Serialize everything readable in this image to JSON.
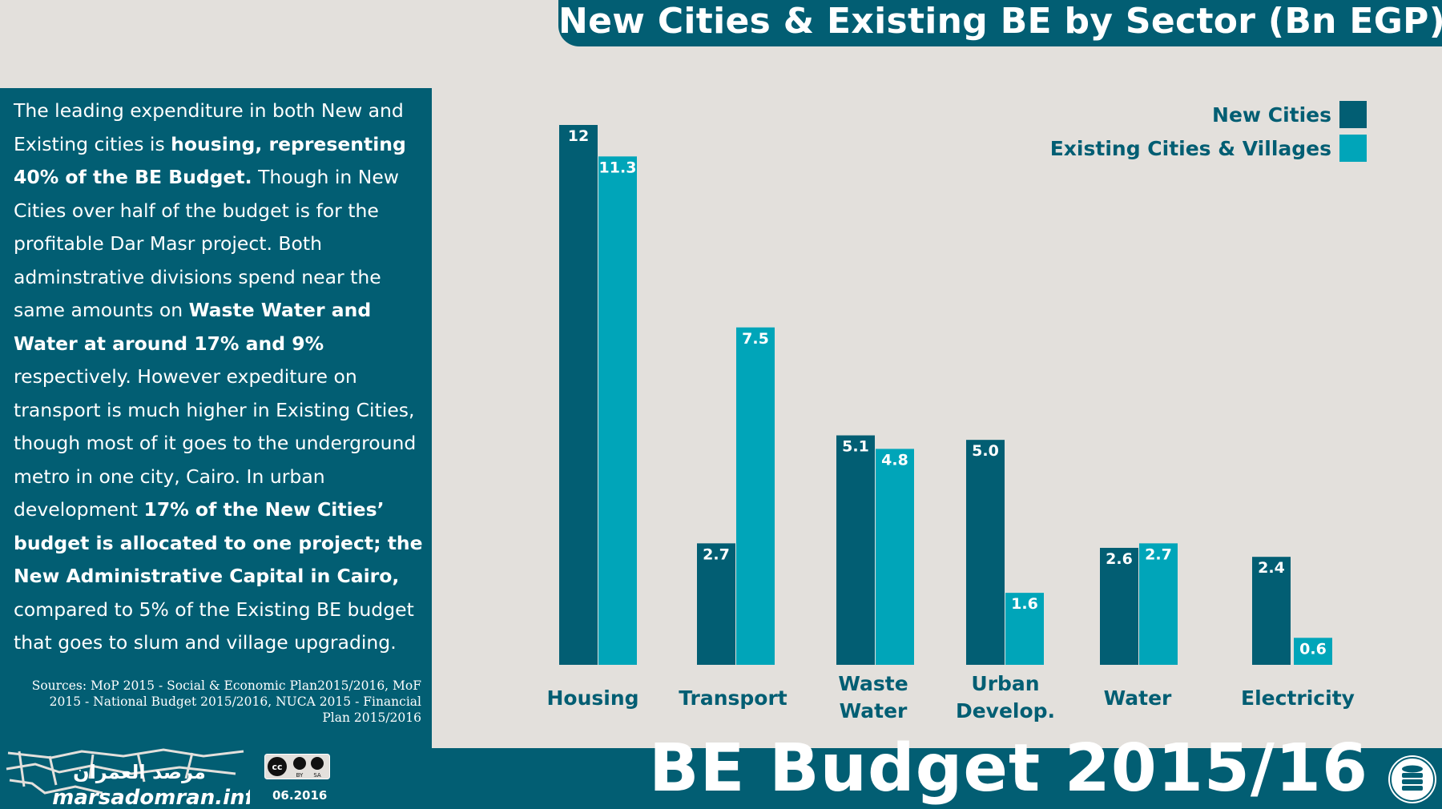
{
  "header": {
    "title": "New Cities & Existing BE by Sector (Bn EGP)"
  },
  "panel": {
    "paragraph": [
      {
        "t": "The leading expenditure in both New and Existing cities is ",
        "b": false
      },
      {
        "t": "housing, representing 40% of the BE Budget.",
        "b": true
      },
      {
        "t": " Though in New Cities over half of the budget is for the profitable Dar Masr project. Both adminstrative divisions spend near the same amounts on ",
        "b": false
      },
      {
        "t": "Waste Water and Water at around 17% and 9%",
        "b": true
      },
      {
        "t": " respectively. However expediture on transport is much higher in Existing Cities, though most of it goes to the underground metro in one city, Cairo. In urban development ",
        "b": false
      },
      {
        "t": "17% of the New Cities’ budget is allocated to one project; the New Administrative Capital in Cairo,",
        "b": true
      },
      {
        "t": " compared to 5% of the Existing BE budget that goes to slum and village upgrading.",
        "b": false
      }
    ],
    "sources": "Sources: MoP 2015 - Social & Economic Plan2015/2016, MoF 2015 - National Budget 2015/2016, NUCA 2015 - Financial Plan 2015/2016"
  },
  "footer": {
    "title": "BE Budget 2015/16",
    "date": "06.2016",
    "logo_text": "marsadomran.info",
    "logo_arabic": "مرصد العمران",
    "license": {
      "cc": "cc",
      "by": "BY",
      "sa": "SA"
    }
  },
  "colors": {
    "dark_teal": "#025e73",
    "light_teal": "#00a5b9",
    "background": "#e3e0dc",
    "white": "#ffffff"
  },
  "chart_data": {
    "type": "bar",
    "title": "New Cities & Existing BE by Sector (Bn EGP)",
    "categories": [
      [
        "Housing"
      ],
      [
        "Transport"
      ],
      [
        "Waste",
        "Water"
      ],
      [
        "Urban",
        "Develop."
      ],
      [
        "Water"
      ],
      [
        "Electricity"
      ]
    ],
    "series": [
      {
        "name": "New Cities",
        "values": [
          12,
          2.7,
          5.1,
          5.0,
          2.6,
          2.4
        ],
        "labels": [
          "12",
          "2.7",
          "5.1",
          "5.0",
          "2.6",
          "2.4"
        ],
        "color": "#025e73"
      },
      {
        "name": "Existing Cities & Villages",
        "values": [
          11.3,
          7.5,
          4.8,
          1.6,
          2.7,
          0.6
        ],
        "labels": [
          "11.3",
          "7.5",
          "4.8",
          "1.6",
          "2.7",
          "0.6"
        ],
        "color": "#00a5b9"
      }
    ],
    "legend": "top-right",
    "grid": false,
    "ylim": [
      0,
      12
    ]
  }
}
